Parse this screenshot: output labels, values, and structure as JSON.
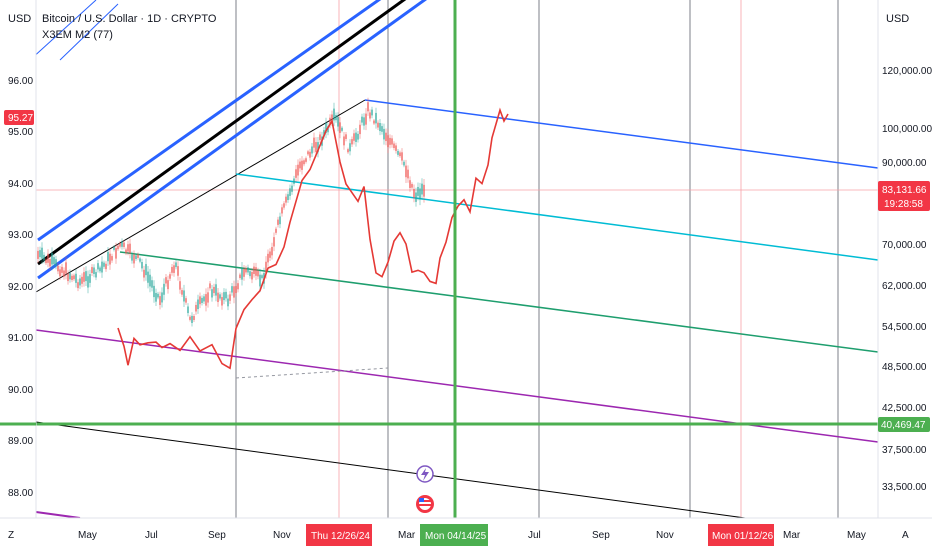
{
  "header": {
    "left_currency": "USD",
    "right_currency": "USD",
    "symbol_title": "Bitcoin / U.S. Dollar · 1D · CRYPTO",
    "indicator_title": "X3EM M2 (77)"
  },
  "left_axis": {
    "ticks": [
      "96.00",
      "95.00",
      "94.00",
      "93.00",
      "92.00",
      "91.00",
      "90.00",
      "89.00",
      "88.00"
    ],
    "current_label": "95.27",
    "current_color": "#f23645"
  },
  "right_axis": {
    "ticks": [
      "120,000.00",
      "100,000.00",
      "90,000.00",
      "70,000.00",
      "62,000.00",
      "54,500.00",
      "48,500.00",
      "42,500.00",
      "37,500.00",
      "33,500.00"
    ],
    "price_label": "83,131.66",
    "countdown_label": "19:28:58",
    "price_color": "#f23645",
    "level_label": "40,469.47",
    "level_color": "#4caf50"
  },
  "x_axis": {
    "ticks": [
      "May",
      "Jul",
      "Sep",
      "Nov",
      "Mar",
      "Jul",
      "Sep",
      "Nov",
      "Mar",
      "May"
    ],
    "highlight_dates": [
      {
        "label": "Thu 12/26/24",
        "color": "#f23645"
      },
      {
        "label": "Mon 04/14/25",
        "color": "#4caf50"
      },
      {
        "label": "Mon 01/12/26",
        "color": "#f23645"
      }
    ],
    "left_corner": "Z",
    "right_corner": "A"
  },
  "icons": {
    "event_icon": "lightning-event-icon",
    "flag_icon": "us-flag-icon"
  },
  "colors": {
    "btc_candles_up": "#26a69a",
    "btc_candles_down": "#ef5350",
    "m2_line": "#e53935",
    "channel_blue": "#2962ff",
    "channel_black": "#000000",
    "pitchfork_cyan": "#00bcd4",
    "pitchfork_green": "#1e9e6e",
    "pitchfork_purple": "#9c27b0",
    "support_green": "#4caf50"
  }
}
